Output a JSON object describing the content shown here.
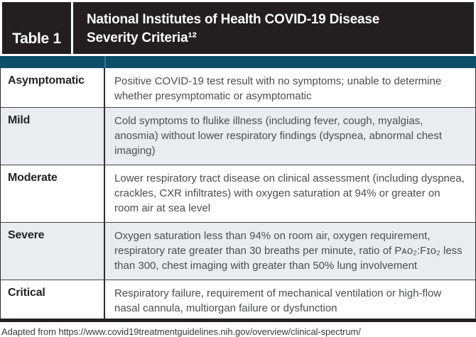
{
  "header": {
    "table_number": "Table 1",
    "title_line1": "National Institutes of Health COVID-19 Disease",
    "title_line2": "Severity Criteria¹²"
  },
  "severity_table": {
    "rows": [
      {
        "term": "Asymptomatic",
        "description": "Positive COVID-19 test result with no symptoms; unable to determine whether presymptomatic or asymptomatic"
      },
      {
        "term": "Mild",
        "description": "Cold symptoms to flulike illness (including fever, cough, myalgias, anosmia) without lower respiratory findings (dyspnea, abnormal chest imaging)"
      },
      {
        "term": "Moderate",
        "description": "Lower respiratory tract disease on clinical assessment (including dyspnea, crackles, CXR infiltrates) with oxygen saturation at 94% or greater on room air at sea level"
      },
      {
        "term": "Severe",
        "description": "Oxygen saturation less than 94% on room air, oxygen requirement, respiratory rate greater than 30 breaths per minute, ratio of Pᴀᴏ₂:Fɪᴏ₂ less than 300, chest imaging with greater than 50% lung involvement"
      },
      {
        "term": "Critical",
        "description": "Respiratory failure, requirement of mechanical ventilation or high-flow nasal cannula, multiorgan failure or dysfunction"
      }
    ]
  },
  "footer": {
    "source_note": "Adapted from https://www.covid19treatmentguidelines.nih.gov/overview/clinical-spectrum/"
  },
  "colors": {
    "header_bg": "#231f20",
    "teal_bar": "#0b4f68",
    "teal_bar_divider": "#2e7896",
    "row_alt_bg": "#e9edf0",
    "body_text": "#4c4d4f",
    "term_text": "#262324"
  }
}
